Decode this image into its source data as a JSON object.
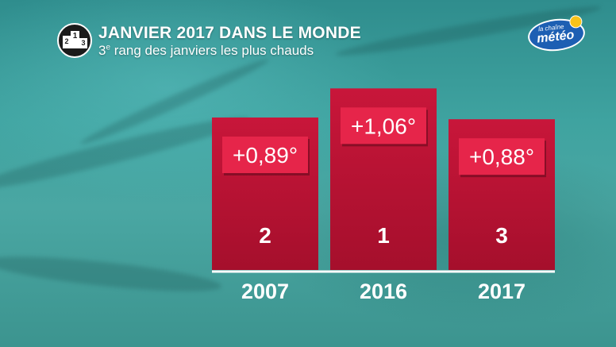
{
  "header": {
    "title": "JANVIER 2017 DANS LE MONDE",
    "subtitle_main": "3",
    "subtitle_sup": "e",
    "subtitle_rest": " rang des janviers les plus chauds",
    "icon_digits": [
      "2",
      "1",
      "3"
    ]
  },
  "logo": {
    "line1": "la chaîne",
    "line2": "météo"
  },
  "colors": {
    "bar": "#c8163a",
    "bar_dark": "#a50f2c",
    "label_box": "#e6254a",
    "text": "#ffffff",
    "logo_blue": "#1d5fb3",
    "logo_sun": "#f7c21a"
  },
  "chart_data": {
    "type": "bar",
    "categories": [
      "2007",
      "2016",
      "2017"
    ],
    "values": [
      0.89,
      1.06,
      0.88
    ],
    "value_labels": [
      "+0,89°",
      "+1,06°",
      "+0,88°"
    ],
    "rank_labels": [
      "2",
      "1",
      "3"
    ],
    "grid": false,
    "legend": "none"
  }
}
